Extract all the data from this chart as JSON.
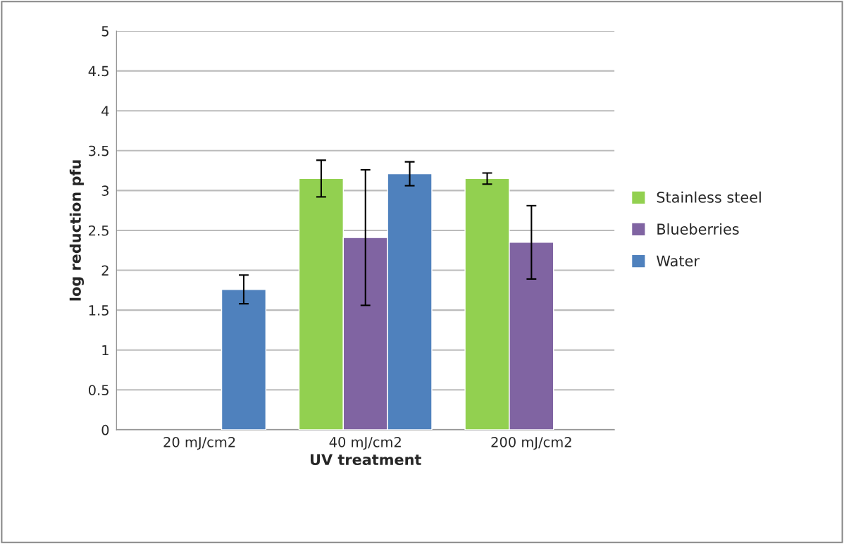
{
  "chart_data": {
    "type": "bar",
    "xlabel": "UV treatment",
    "ylabel": "log reduction pfu",
    "categories": [
      "20 mJ/cm2",
      "40 mJ/cm2",
      "200 mJ/cm2"
    ],
    "series": [
      {
        "name": "Stainless steel",
        "color": "#92d050",
        "values": [
          null,
          3.15,
          3.15
        ],
        "errors": [
          null,
          0.23,
          0.07
        ]
      },
      {
        "name": "Blueberries",
        "color": "#8064a2",
        "values": [
          null,
          2.41,
          2.35
        ],
        "errors": [
          null,
          0.85,
          0.46
        ]
      },
      {
        "name": "Water",
        "color": "#4f81bd",
        "values": [
          1.76,
          3.21,
          null
        ],
        "errors": [
          0.18,
          0.15,
          null
        ]
      }
    ],
    "ylim": [
      0,
      5
    ],
    "yticks": [
      0,
      0.5,
      1,
      1.5,
      2,
      2.5,
      3,
      3.5,
      4,
      4.5,
      5
    ],
    "grid": "y",
    "legend": "right"
  }
}
